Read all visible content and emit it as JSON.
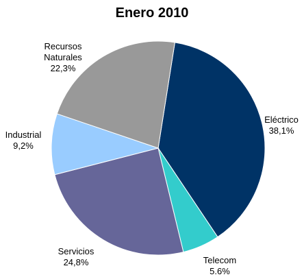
{
  "chart_data": {
    "type": "pie",
    "title": "Enero 2010",
    "categories": [
      "Eléctrico",
      "Telecom",
      "Servicios",
      "Industrial",
      "Recursos Naturales"
    ],
    "values": [
      38.1,
      5.6,
      24.8,
      9.2,
      22.3
    ],
    "value_labels": [
      "38,1%",
      "5.6%",
      "24,8%",
      "9,2%",
      "22,3%"
    ],
    "colors": [
      "#003366",
      "#33cccc",
      "#666699",
      "#99ccff",
      "#999999"
    ]
  }
}
